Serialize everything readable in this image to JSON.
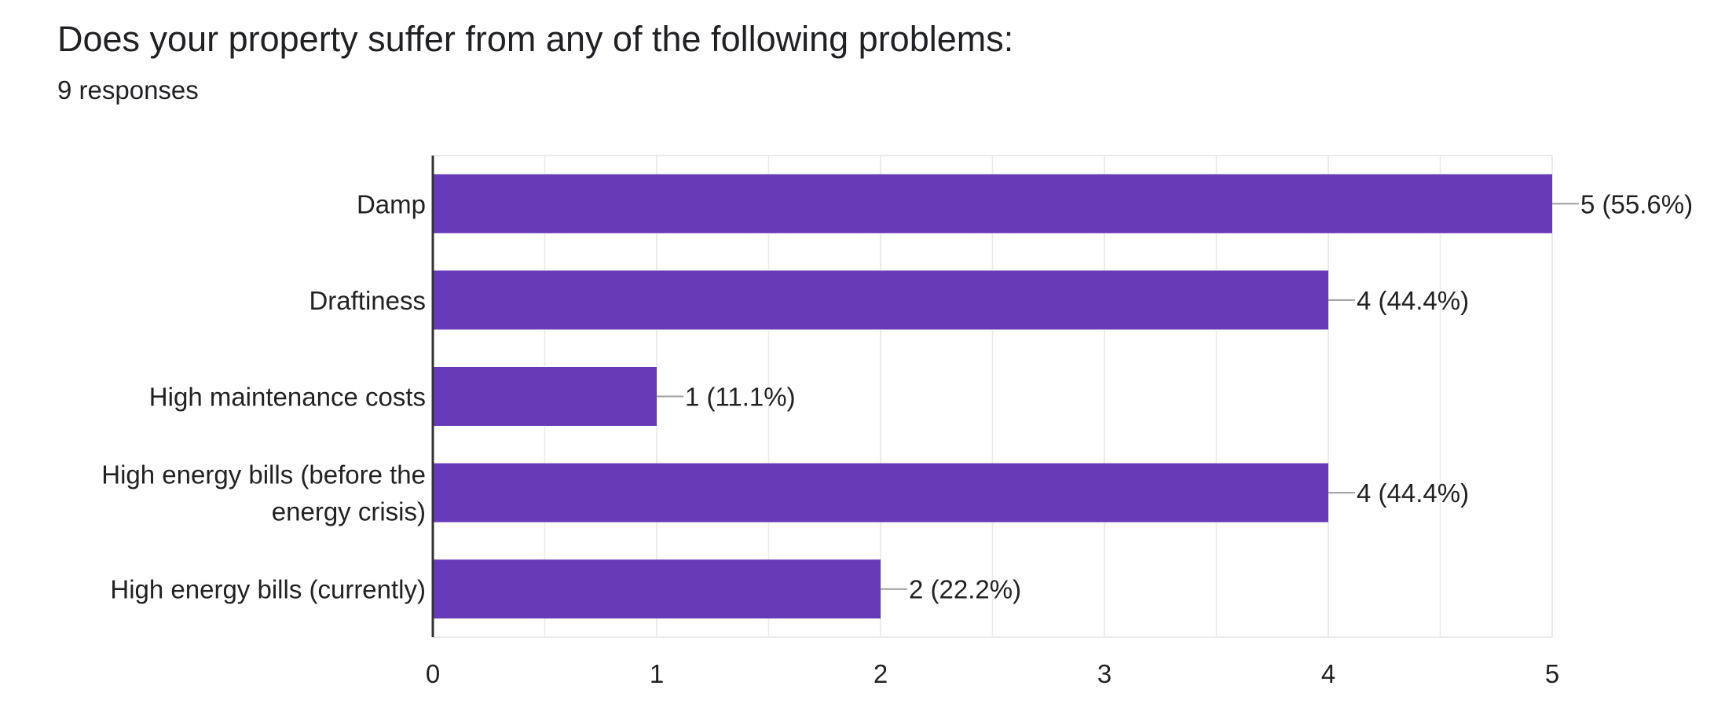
{
  "header": {
    "question": "Does your property suffer from any of the following problems:",
    "responses": "9 responses"
  },
  "colors": {
    "bar": "#673ab7",
    "grid": "#ebebeb",
    "axis": "#333333",
    "text": "#222222",
    "leader": "#9e9e9e"
  },
  "chart_data": {
    "type": "bar",
    "orientation": "horizontal",
    "categories": [
      [
        "Damp"
      ],
      [
        "Draftiness"
      ],
      [
        "High maintenance costs"
      ],
      [
        "High energy bills (before the",
        "energy crisis)"
      ],
      [
        "High energy bills (currently)"
      ]
    ],
    "values": [
      5,
      4,
      1,
      4,
      2
    ],
    "value_labels": [
      "5 (55.6%)",
      "4 (44.4%)",
      "1 (11.1%)",
      "4 (44.4%)",
      "2 (22.2%)"
    ],
    "xlim": [
      0,
      5
    ],
    "xticks": [
      0,
      1,
      2,
      3,
      4,
      5
    ],
    "grid": true,
    "legend": "none",
    "title": "",
    "xlabel": "",
    "ylabel": ""
  }
}
